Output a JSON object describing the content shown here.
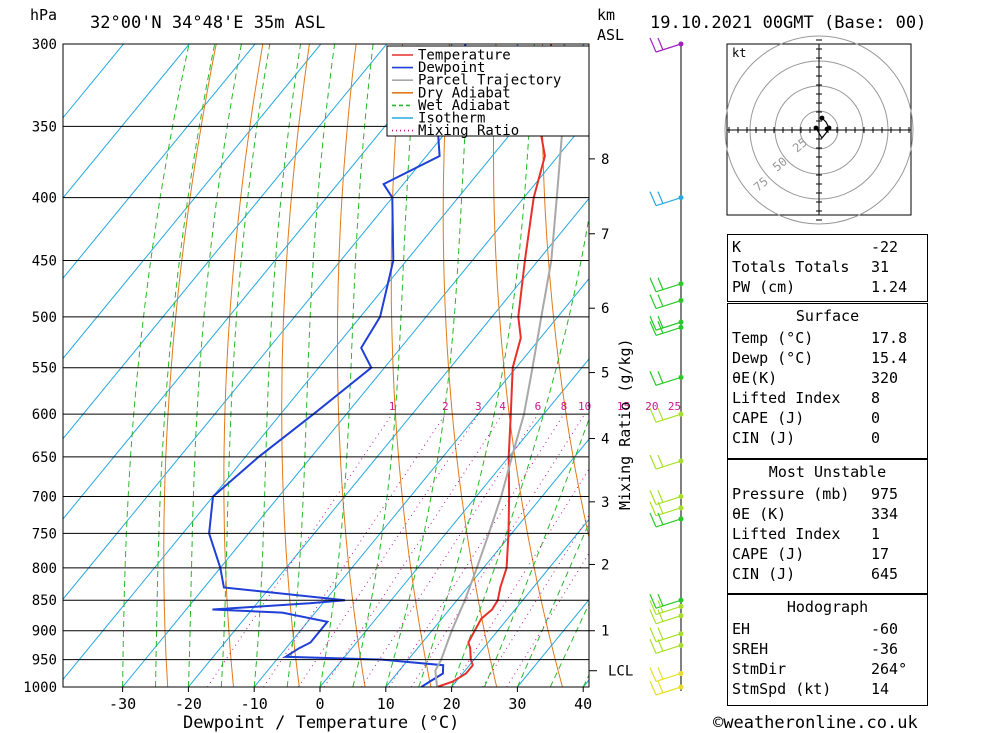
{
  "header": {
    "location": "32°00'N  34°48'E  35m  ASL",
    "date": "19.10.2021  00GMT  (Base: 00)",
    "hpa_label": "hPa",
    "km_label": "km",
    "asl_label": "ASL",
    "kt_label": "kt"
  },
  "footer": {
    "credit": "©weatheronline.co.uk",
    "xlabel": "Dewpoint / Temperature (°C)",
    "mixing_label": "Mixing Ratio (g/kg)"
  },
  "legend": [
    {
      "label": "Temperature",
      "color": "#e8302a",
      "style": "solid"
    },
    {
      "label": "Dewpoint",
      "color": "#1f3fd6",
      "style": "solid"
    },
    {
      "label": "Parcel Trajectory",
      "color": "#a8a8a8",
      "style": "solid"
    },
    {
      "label": "Dry Adiabat",
      "color": "#e07a1a",
      "style": "solid"
    },
    {
      "label": "Wet Adiabat",
      "color": "#28b828",
      "style": "dashed"
    },
    {
      "label": "Isotherm",
      "color": "#28a8e0",
      "style": "solid"
    },
    {
      "label": "Mixing Ratio",
      "color": "#c81890",
      "style": "dotted"
    }
  ],
  "chart_data": {
    "type": "line",
    "title": "32°00'N  34°48'E  35m  ASL",
    "xlabel": "Dewpoint / Temperature (°C)",
    "ylabel": "hPa",
    "pressure_levels": [
      300,
      350,
      400,
      450,
      500,
      550,
      600,
      650,
      700,
      750,
      800,
      850,
      900,
      950,
      1000
    ],
    "x_ticks": [
      -30,
      -20,
      -10,
      0,
      10,
      20,
      30,
      40
    ],
    "skew_x_range_at_1000hpa": [
      -40,
      40
    ],
    "km_ticks": [
      {
        "km": "1",
        "p": 900
      },
      {
        "km": "2",
        "p": 795
      },
      {
        "km": "3",
        "p": 707
      },
      {
        "km": "4",
        "p": 628
      },
      {
        "km": "5",
        "p": 555
      },
      {
        "km": "6",
        "p": 492
      },
      {
        "km": "7",
        "p": 428
      },
      {
        "km": "8",
        "p": 372
      }
    ],
    "lcl": {
      "label": "LCL",
      "p": 970
    },
    "mixing_ratio_labels": [
      "1",
      "2",
      "3",
      "4",
      "6",
      "8",
      "10",
      "15",
      "20",
      "25"
    ],
    "series": [
      {
        "name": "Temperature",
        "color": "#e8302a",
        "points": [
          [
            1000,
            17.8
          ],
          [
            990,
            19.5
          ],
          [
            975,
            20.5
          ],
          [
            960,
            20.5
          ],
          [
            950,
            19.5
          ],
          [
            930,
            18.0
          ],
          [
            920,
            17.0
          ],
          [
            900,
            16.5
          ],
          [
            880,
            16.0
          ],
          [
            865,
            16.5
          ],
          [
            850,
            16.2
          ],
          [
            830,
            15.0
          ],
          [
            800,
            13.5
          ],
          [
            750,
            9.5
          ],
          [
            700,
            5.0
          ],
          [
            650,
            0.0
          ],
          [
            600,
            -5.0
          ],
          [
            550,
            -10.5
          ],
          [
            520,
            -13.0
          ],
          [
            500,
            -16.0
          ],
          [
            450,
            -22.0
          ],
          [
            400,
            -28.5
          ],
          [
            370,
            -32.0
          ],
          [
            350,
            -36.5
          ],
          [
            300,
            -45.0
          ]
        ]
      },
      {
        "name": "Dewpoint",
        "color": "#1f3fd6",
        "points": [
          [
            1000,
            15.4
          ],
          [
            990,
            16.0
          ],
          [
            975,
            17.0
          ],
          [
            960,
            16.0
          ],
          [
            950,
            6.0
          ],
          [
            945,
            -9.0
          ],
          [
            930,
            -8.0
          ],
          [
            920,
            -7.0
          ],
          [
            900,
            -7.0
          ],
          [
            885,
            -7.0
          ],
          [
            870,
            -15.0
          ],
          [
            865,
            -26.0
          ],
          [
            855,
            -12.0
          ],
          [
            850,
            -7.0
          ],
          [
            830,
            -27.0
          ],
          [
            800,
            -30.0
          ],
          [
            750,
            -36.0
          ],
          [
            700,
            -40.0
          ],
          [
            650,
            -38.0
          ],
          [
            600,
            -35.0
          ],
          [
            550,
            -32.0
          ],
          [
            530,
            -36.0
          ],
          [
            500,
            -37.0
          ],
          [
            450,
            -42.0
          ],
          [
            400,
            -50.0
          ],
          [
            390,
            -53.0
          ],
          [
            370,
            -48.0
          ],
          [
            350,
            -52.0
          ],
          [
            300,
            -58.0
          ]
        ]
      },
      {
        "name": "Parcel Trajectory",
        "color": "#a8a8a8",
        "points": [
          [
            1000,
            17.8
          ],
          [
            970,
            15.5
          ],
          [
            950,
            15.0
          ],
          [
            900,
            13.0
          ],
          [
            850,
            11.2
          ],
          [
            800,
            9.0
          ],
          [
            750,
            6.5
          ],
          [
            700,
            3.8
          ],
          [
            650,
            0.5
          ],
          [
            600,
            -3.0
          ],
          [
            550,
            -7.5
          ],
          [
            500,
            -12.5
          ],
          [
            450,
            -18.0
          ],
          [
            400,
            -25.0
          ],
          [
            350,
            -33.0
          ],
          [
            300,
            -43.0
          ]
        ]
      }
    ],
    "wind_barbs": [
      {
        "p": 300,
        "color": "#a020c0"
      },
      {
        "p": 400,
        "color": "#28a8e0"
      },
      {
        "p": 470,
        "color": "#28c828"
      },
      {
        "p": 485,
        "color": "#28c828"
      },
      {
        "p": 505,
        "color": "#28c828"
      },
      {
        "p": 510,
        "color": "#28c828"
      },
      {
        "p": 560,
        "color": "#28c828"
      },
      {
        "p": 600,
        "color": "#a8e028"
      },
      {
        "p": 655,
        "color": "#a8e028"
      },
      {
        "p": 700,
        "color": "#a8e028"
      },
      {
        "p": 715,
        "color": "#a8e028"
      },
      {
        "p": 730,
        "color": "#28c828"
      },
      {
        "p": 850,
        "color": "#28c828"
      },
      {
        "p": 860,
        "color": "#a8e028"
      },
      {
        "p": 875,
        "color": "#a8e028"
      },
      {
        "p": 905,
        "color": "#a8e028"
      },
      {
        "p": 925,
        "color": "#a8e028"
      },
      {
        "p": 975,
        "color": "#e8e028"
      },
      {
        "p": 1000,
        "color": "#e8e028"
      }
    ],
    "hodograph": {
      "ring_labels": [
        "25",
        "50",
        "75"
      ]
    }
  },
  "indices": {
    "basic": [
      {
        "label": "K",
        "value": "-22"
      },
      {
        "label": "Totals Totals",
        "value": "31"
      },
      {
        "label": "PW (cm)",
        "value": "1.24"
      }
    ],
    "surface": {
      "title": "Surface",
      "rows": [
        {
          "label": "Temp (°C)",
          "value": "17.8"
        },
        {
          "label": "Dewp (°C)",
          "value": "15.4"
        },
        {
          "label": "θE(K)",
          "value": "320"
        },
        {
          "label": "Lifted Index",
          "value": "8"
        },
        {
          "label": "CAPE (J)",
          "value": "0"
        },
        {
          "label": "CIN (J)",
          "value": "0"
        }
      ]
    },
    "most_unstable": {
      "title": "Most Unstable",
      "rows": [
        {
          "label": "Pressure (mb)",
          "value": "975"
        },
        {
          "label": "θE (K)",
          "value": "334"
        },
        {
          "label": "Lifted Index",
          "value": "1"
        },
        {
          "label": "CAPE (J)",
          "value": "17"
        },
        {
          "label": "CIN (J)",
          "value": "645"
        }
      ]
    },
    "hodograph": {
      "title": "Hodograph",
      "rows": [
        {
          "label": "EH",
          "value": "-60"
        },
        {
          "label": "SREH",
          "value": "-36"
        },
        {
          "label": "StmDir",
          "value": "264°"
        },
        {
          "label": "StmSpd (kt)",
          "value": "14"
        }
      ]
    }
  }
}
